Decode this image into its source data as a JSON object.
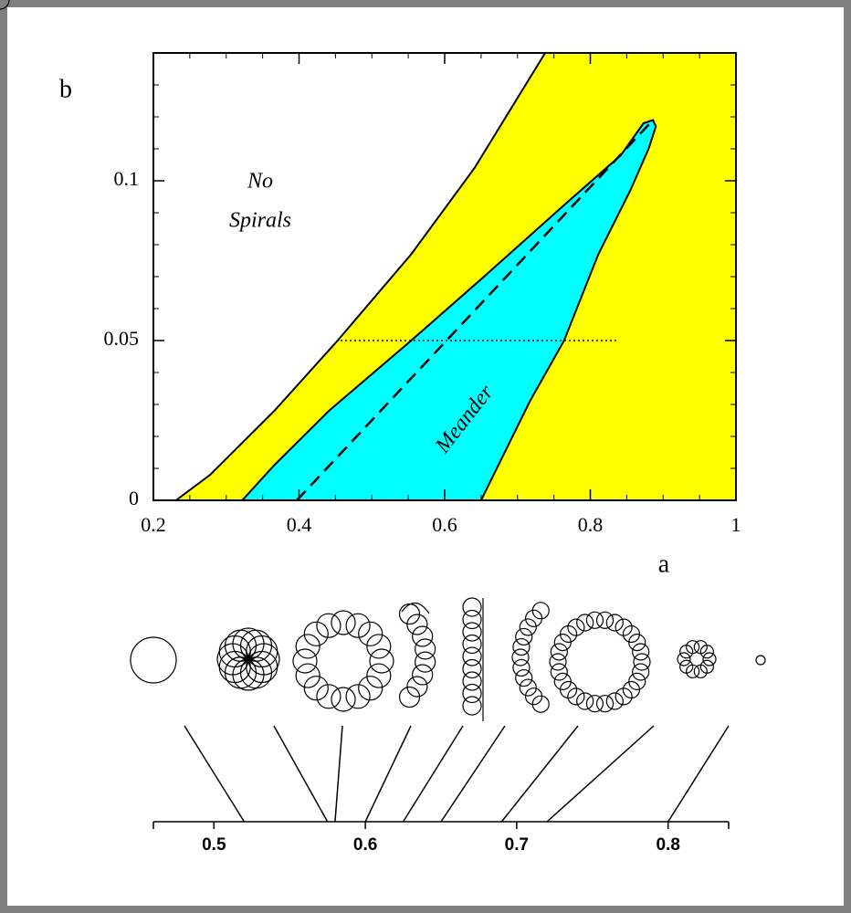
{
  "chart_data": [
    {
      "type": "region",
      "xlabel": "a",
      "ylabel": "b",
      "xlim": [
        0.2,
        1
      ],
      "ylim": [
        0,
        0.14
      ],
      "xticks": [
        0.2,
        0.4,
        0.6,
        0.8,
        1
      ],
      "yticks": [
        0,
        0.05,
        0.1
      ],
      "regions": [
        {
          "color": "#ffff00",
          "x": [
            0.231,
            0.278,
            0.366,
            0.453,
            0.554,
            0.641,
            0.738
          ],
          "y": [
            0,
            0.008,
            0.028,
            0.05,
            0.077,
            0.104,
            0.14
          ]
        },
        {
          "color": "#00ffff",
          "x": [
            0.322,
            0.366,
            0.441,
            0.554,
            0.654,
            0.767,
            0.842,
            0.873,
            0.886,
            0.89,
            0.88,
            0.855,
            0.811,
            0.764,
            0.717,
            0.65
          ],
          "y": [
            0,
            0.011,
            0.028,
            0.05,
            0.07,
            0.093,
            0.108,
            0.118,
            0.119,
            0.117,
            0.11,
            0.097,
            0.077,
            0.05,
            0.031,
            0
          ]
        }
      ],
      "lines": [
        {
          "style": "dashed",
          "x": [
            0.397,
            0.882
          ],
          "y": [
            0,
            0.118
          ]
        },
        {
          "style": "dotted",
          "x": [
            0.457,
            0.836
          ],
          "y": [
            0.05,
            0.05
          ]
        }
      ],
      "no_spirals_label": [
        "No",
        "Spirals"
      ],
      "meander_label": "Meander"
    },
    {
      "type": "strip",
      "xlim": [
        0.46,
        0.84
      ],
      "xticks": [
        0.5,
        0.6,
        0.7,
        0.8
      ],
      "x": [
        0.52,
        0.575,
        0.58,
        0.6,
        0.625,
        0.65,
        0.69,
        0.72,
        0.8
      ]
    }
  ]
}
